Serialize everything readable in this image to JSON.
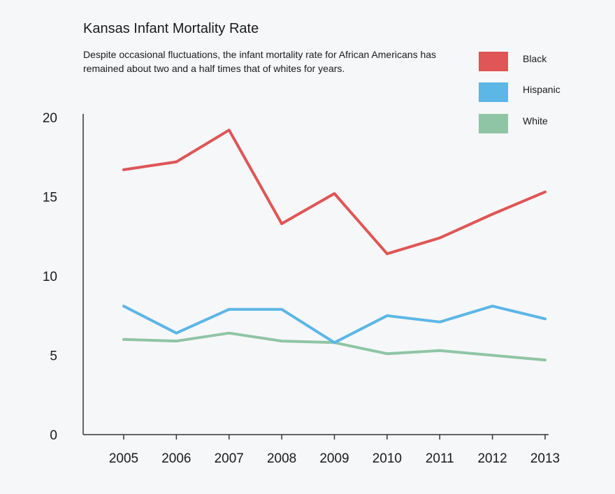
{
  "chart_data": {
    "type": "line",
    "title": "Kansas Infant Mortality Rate",
    "subtitle": "Despite occasional fluctuations, the infant mortality rate for African Americans has remained about two and a half times that of whites for years.",
    "xlabel": "",
    "ylabel": "",
    "x": [
      "2005",
      "2006",
      "2007",
      "2008",
      "2009",
      "2010",
      "2011",
      "2012",
      "2013"
    ],
    "yticks": [
      "0",
      "5",
      "10",
      "15",
      "20"
    ],
    "ylim": [
      0,
      20
    ],
    "grid": false,
    "legend_position": "top-right",
    "series": [
      {
        "name": "Black",
        "color": "#e05555",
        "values": [
          16.7,
          17.2,
          19.2,
          13.3,
          15.2,
          11.4,
          12.4,
          13.9,
          15.3
        ]
      },
      {
        "name": "Hispanic",
        "color": "#5cb6e6",
        "values": [
          8.1,
          6.4,
          7.9,
          7.9,
          5.8,
          7.5,
          7.1,
          8.1,
          7.3
        ]
      },
      {
        "name": "White",
        "color": "#8fc5a4",
        "values": [
          6.0,
          5.9,
          6.4,
          5.9,
          5.8,
          5.1,
          5.3,
          5.0,
          4.7
        ]
      }
    ]
  }
}
